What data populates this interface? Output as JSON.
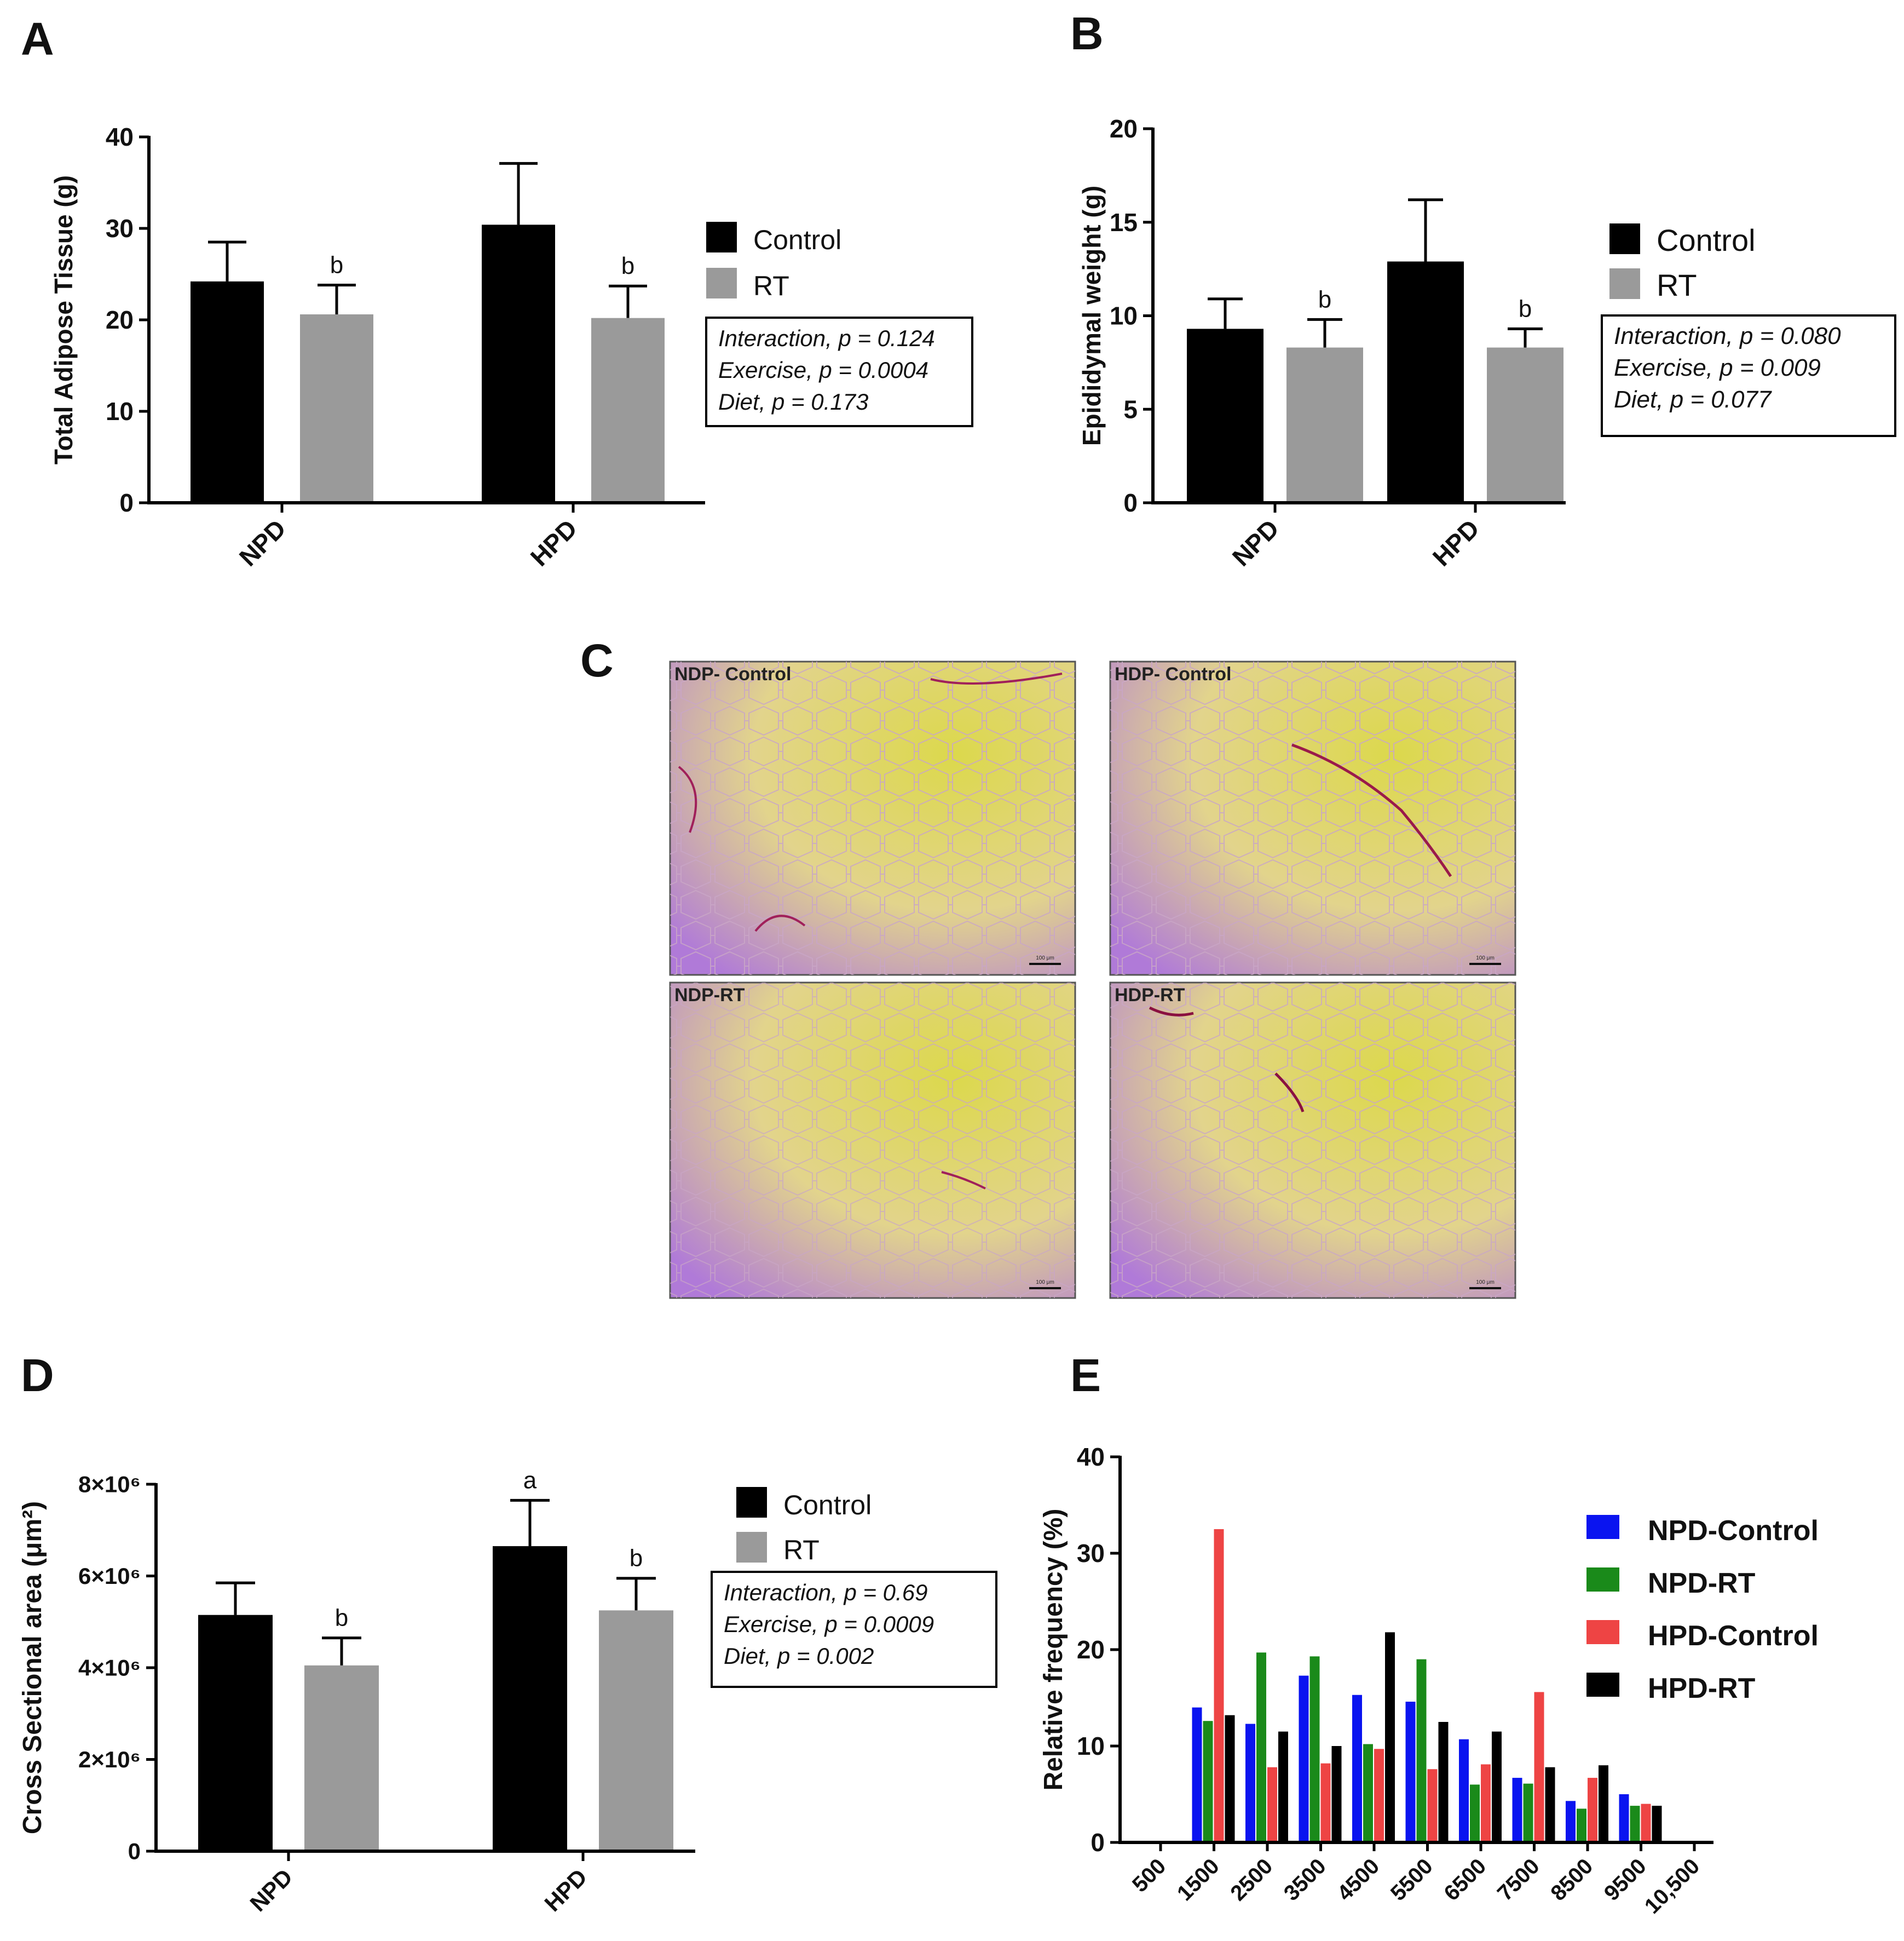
{
  "colors": {
    "control": "#000000",
    "rt": "#9a9a9a",
    "npd_control": "#0a14f0",
    "npd_rt": "#1a8a1a",
    "hpd_control": "#ee4444",
    "hpd_rt": "#000000",
    "stain_yellow": "#d8d44a",
    "stain_pink": "#c45a9a",
    "stain_violet": "#a066d8"
  },
  "chart_data": [
    {
      "panel": "A",
      "type": "bar",
      "categories": [
        "NPD",
        "HPD"
      ],
      "series": [
        {
          "name": "Control",
          "values": [
            24.2,
            30.4
          ],
          "errors": [
            4.3,
            6.7
          ],
          "sig": [
            "",
            ""
          ]
        },
        {
          "name": "RT",
          "values": [
            20.6,
            20.2
          ],
          "errors": [
            3.2,
            3.5
          ],
          "sig": [
            "b",
            "b"
          ]
        }
      ],
      "ylabel": "Total Adipose Tissue (g)",
      "ylim": [
        0,
        40
      ],
      "yticks": [
        "0",
        "10",
        "20",
        "30",
        "40"
      ],
      "legend_placement": "right",
      "stats": [
        "Interaction, p = 0.124",
        "Exercise, p = 0.0004",
        "Diet, p = 0.173"
      ]
    },
    {
      "panel": "B",
      "type": "bar",
      "categories": [
        "NPD",
        "HPD"
      ],
      "series": [
        {
          "name": "Control",
          "values": [
            9.3,
            12.9
          ],
          "errors": [
            1.6,
            3.3
          ],
          "sig": [
            "",
            ""
          ]
        },
        {
          "name": "RT",
          "values": [
            8.3,
            8.3
          ],
          "errors": [
            1.5,
            1.0
          ],
          "sig": [
            "b",
            "b"
          ]
        }
      ],
      "ylabel": "Epididymal weight (g)",
      "ylim": [
        0,
        20
      ],
      "yticks": [
        "0",
        "5",
        "10",
        "15",
        "20"
      ],
      "legend_placement": "right",
      "stats": [
        "Interaction, p = 0.080",
        "Exercise, p = 0.009",
        "Diet, p = 0.077"
      ]
    },
    {
      "panel": "D",
      "type": "bar",
      "categories": [
        "NPD",
        "HPD"
      ],
      "series": [
        {
          "name": "Control",
          "values": [
            5150000,
            6650000
          ],
          "errors": [
            700000,
            1000000
          ],
          "sig": [
            "",
            "a"
          ]
        },
        {
          "name": "RT",
          "values": [
            4050000,
            5250000
          ],
          "errors": [
            600000,
            700000
          ],
          "sig": [
            "b",
            "b"
          ]
        }
      ],
      "ylabel": "Cross Sectional area (μm²)",
      "ylim": [
        0,
        8000000
      ],
      "yticks": [
        "0",
        "2×10⁶",
        "4×10⁶",
        "6×10⁶",
        "8×10⁶"
      ],
      "legend_placement": "right",
      "stats": [
        "Interaction, p = 0.69",
        "Exercise, p = 0.0009",
        "Diet, p = 0.002"
      ]
    },
    {
      "panel": "E",
      "type": "bar",
      "categories": [
        "500",
        "1500",
        "2500",
        "3500",
        "4500",
        "5500",
        "6500",
        "7500",
        "8500",
        "9500",
        "10,500"
      ],
      "series": [
        {
          "name": "NPD-Control",
          "values": [
            0,
            14.0,
            12.3,
            17.3,
            15.3,
            14.6,
            10.7,
            6.7,
            4.3,
            5.0,
            0
          ]
        },
        {
          "name": "NPD-RT",
          "values": [
            0,
            12.6,
            19.7,
            19.3,
            10.2,
            19.0,
            6.0,
            6.1,
            3.5,
            3.8,
            0
          ]
        },
        {
          "name": "HPD-Control",
          "values": [
            0,
            32.5,
            7.8,
            8.2,
            9.7,
            7.6,
            8.1,
            15.6,
            6.7,
            4.0,
            0
          ]
        },
        {
          "name": "HPD-RT",
          "values": [
            0,
            13.2,
            11.5,
            10.0,
            21.8,
            12.5,
            11.5,
            7.8,
            8.0,
            3.8,
            0
          ]
        }
      ],
      "ylabel": "Relative frequency (%)",
      "ylim": [
        0,
        40
      ],
      "yticks": [
        "0",
        "10",
        "20",
        "30",
        "40"
      ],
      "legend_placement": "right"
    }
  ],
  "panels": {
    "A": "A",
    "B": "B",
    "C": "C",
    "D": "D",
    "E": "E"
  },
  "micrographs": [
    {
      "label": "NDP- Control",
      "scale": "100 μm"
    },
    {
      "label": "HDP- Control",
      "scale": "100 μm"
    },
    {
      "label": "NDP-RT",
      "scale": "100 μm"
    },
    {
      "label": "HDP-RT",
      "scale": "100 μm"
    }
  ]
}
